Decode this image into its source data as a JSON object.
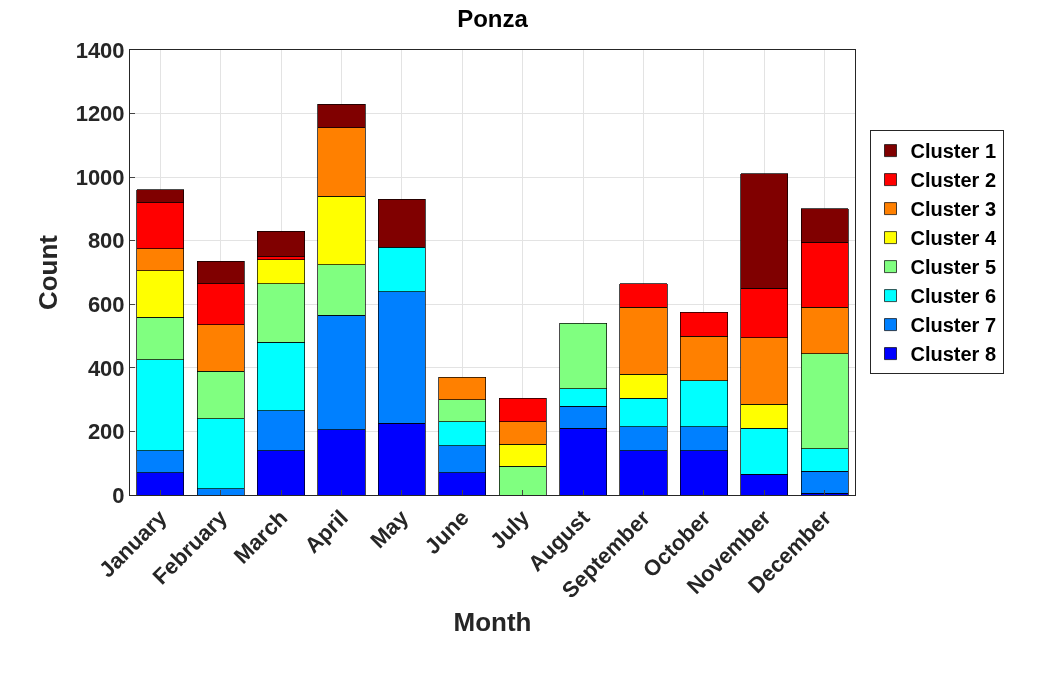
{
  "chart_data": {
    "type": "bar",
    "title": "Ponza",
    "xlabel": "Month",
    "ylabel": "Count",
    "categories": [
      "January",
      "February",
      "March",
      "April",
      "May",
      "June",
      "July",
      "August",
      "September",
      "October",
      "November",
      "December"
    ],
    "stacked": true,
    "ylim": [
      0,
      1400
    ],
    "yticks": [
      0,
      200,
      400,
      600,
      800,
      1000,
      1200,
      1400
    ],
    "grid": true,
    "legend": "right",
    "series": [
      {
        "name": "Cluster 8",
        "color": "#0000ff",
        "values": [
          70,
          null,
          140,
          205,
          225,
          70,
          null,
          210,
          140,
          140,
          65,
          5
        ]
      },
      {
        "name": "Cluster 7",
        "color": "#0080ff",
        "values": [
          70,
          20,
          125,
          360,
          415,
          85,
          null,
          70,
          75,
          75,
          null,
          70
        ]
      },
      {
        "name": "Cluster 6",
        "color": "#00ffff",
        "values": [
          285,
          220,
          215,
          null,
          140,
          75,
          null,
          55,
          90,
          145,
          145,
          70
        ]
      },
      {
        "name": "Cluster 5",
        "color": "#80ff80",
        "values": [
          135,
          150,
          185,
          160,
          null,
          70,
          90,
          205,
          null,
          null,
          null,
          300
        ]
      },
      {
        "name": "Cluster 4",
        "color": "#ffff00",
        "values": [
          145,
          null,
          75,
          215,
          null,
          null,
          70,
          null,
          75,
          null,
          75,
          null
        ]
      },
      {
        "name": "Cluster 3",
        "color": "#ff8000",
        "values": [
          70,
          145,
          null,
          215,
          null,
          70,
          70,
          null,
          210,
          140,
          210,
          145
        ]
      },
      {
        "name": "Cluster 2",
        "color": "#ff0000",
        "values": [
          145,
          130,
          10,
          null,
          null,
          null,
          75,
          null,
          75,
          75,
          155,
          205
        ]
      },
      {
        "name": "Cluster 1",
        "color": "#800000",
        "values": [
          40,
          70,
          80,
          75,
          150,
          null,
          null,
          null,
          null,
          null,
          360,
          105
        ]
      }
    ]
  }
}
